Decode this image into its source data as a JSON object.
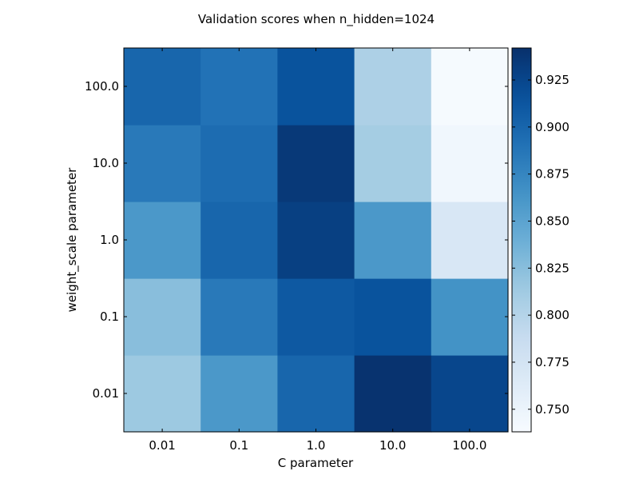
{
  "chart_data": {
    "type": "heatmap",
    "title": "Validation scores when n_hidden=1024",
    "xlabel": "C parameter",
    "ylabel": "weight_scale parameter",
    "x_categories": [
      "0.01",
      "0.1",
      "1.0",
      "10.0",
      "100.0"
    ],
    "y_categories": [
      "0.01",
      "0.1",
      "1.0",
      "10.0",
      "100.0"
    ],
    "y_order": "bottom-to-top",
    "values": [
      [
        0.815,
        0.86,
        0.9,
        0.94,
        0.925
      ],
      [
        0.825,
        0.885,
        0.91,
        0.915,
        0.865
      ],
      [
        0.86,
        0.9,
        0.93,
        0.86,
        0.77
      ],
      [
        0.885,
        0.895,
        0.935,
        0.81,
        0.745
      ],
      [
        0.9,
        0.89,
        0.915,
        0.805,
        0.74
      ]
    ],
    "colorbar": {
      "min": 0.738,
      "max": 0.942,
      "ticks": [
        0.75,
        0.775,
        0.8,
        0.825,
        0.85,
        0.875,
        0.9,
        0.925
      ],
      "tick_labels": [
        "0.750",
        "0.775",
        "0.800",
        "0.825",
        "0.850",
        "0.875",
        "0.900",
        "0.925"
      ],
      "colormap": "Blues"
    },
    "colors": {
      "low": "#f7fbff",
      "high": "#08306b"
    },
    "grid": false,
    "legend": "colorbar-right"
  }
}
